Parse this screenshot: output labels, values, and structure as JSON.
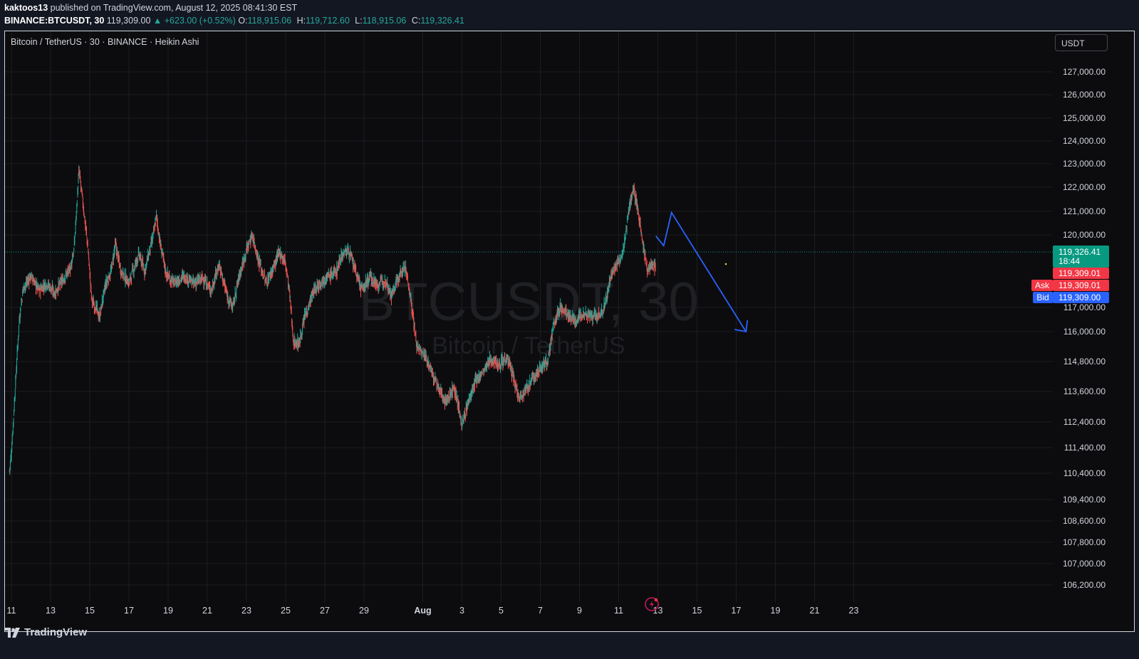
{
  "header": {
    "author": "kaktoos13",
    "published_text": "published on TradingView.com, August 12, 2025 08:41:30 EST"
  },
  "quote": {
    "symbol": "BINANCE:BTCUSDT, 30",
    "price": "119,309.00",
    "change": "▲ +623.00 (+0.52%)",
    "o_label": "O:",
    "o": "118,915.06",
    "h_label": "H:",
    "h": "119,712.60",
    "l_label": "L:",
    "l": "118,915.06",
    "c_label": "C:",
    "c": "119,326.41"
  },
  "legend_text": "Bitcoin / TetherUS · 30 · BINANCE · Heikin Ashi",
  "currency_button": "USDT",
  "watermark": {
    "main": "BTCUSDT, 30",
    "sub": "Bitcoin / TetherUS"
  },
  "footer": {
    "brand": "TradingView"
  },
  "chart_data": {
    "type": "candlestick",
    "title": "Bitcoin / TetherUS · 30 · BINANCE · Heikin Ashi",
    "y_ticks": [
      {
        "label": "127,000.00",
        "value": 127000
      },
      {
        "label": "126,000.00",
        "value": 126000
      },
      {
        "label": "125,000.00",
        "value": 125000
      },
      {
        "label": "124,000.00",
        "value": 124000
      },
      {
        "label": "123,000.00",
        "value": 123000
      },
      {
        "label": "122,000.00",
        "value": 122000
      },
      {
        "label": "121,000.00",
        "value": 121000
      },
      {
        "label": "120,000.00",
        "value": 120000
      },
      {
        "label": "117,000.00",
        "value": 117000
      },
      {
        "label": "116,000.00",
        "value": 116000
      },
      {
        "label": "114,800.00",
        "value": 114800
      },
      {
        "label": "113,600.00",
        "value": 113600
      },
      {
        "label": "112,400.00",
        "value": 112400
      },
      {
        "label": "111,400.00",
        "value": 111400
      },
      {
        "label": "110,400.00",
        "value": 110400
      },
      {
        "label": "109,400.00",
        "value": 109400
      },
      {
        "label": "108,600.00",
        "value": 108600
      },
      {
        "label": "107,800.00",
        "value": 107800
      },
      {
        "label": "107,000.00",
        "value": 107000
      },
      {
        "label": "106,200.00",
        "value": 106200
      }
    ],
    "x_ticks": [
      {
        "label": "11",
        "day": 11
      },
      {
        "label": "13",
        "day": 13
      },
      {
        "label": "15",
        "day": 15
      },
      {
        "label": "17",
        "day": 17
      },
      {
        "label": "19",
        "day": 19
      },
      {
        "label": "21",
        "day": 21
      },
      {
        "label": "23",
        "day": 23
      },
      {
        "label": "25",
        "day": 25
      },
      {
        "label": "27",
        "day": 27
      },
      {
        "label": "29",
        "day": 29
      },
      {
        "label": "Aug",
        "day": 32
      },
      {
        "label": "3",
        "day": 34
      },
      {
        "label": "5",
        "day": 36
      },
      {
        "label": "7",
        "day": 38
      },
      {
        "label": "9",
        "day": 40
      },
      {
        "label": "11",
        "day": 42
      },
      {
        "label": "13",
        "day": 44
      },
      {
        "label": "15",
        "day": 46
      },
      {
        "label": "17",
        "day": 48
      },
      {
        "label": "19",
        "day": 50
      },
      {
        "label": "21",
        "day": 52
      },
      {
        "label": "23",
        "day": 54
      }
    ],
    "price_series": [
      [
        10.9,
        110500
      ],
      [
        11.0,
        111200
      ],
      [
        11.2,
        113800
      ],
      [
        11.4,
        116500
      ],
      [
        11.6,
        117800
      ],
      [
        12.0,
        118300
      ],
      [
        12.4,
        117700
      ],
      [
        12.8,
        118000
      ],
      [
        13.2,
        117600
      ],
      [
        13.6,
        118100
      ],
      [
        14.0,
        118600
      ],
      [
        14.2,
        119400
      ],
      [
        14.45,
        122700
      ],
      [
        14.7,
        121000
      ],
      [
        14.9,
        119500
      ],
      [
        15.1,
        117300
      ],
      [
        15.3,
        117000
      ],
      [
        15.5,
        116600
      ],
      [
        15.8,
        117900
      ],
      [
        16.1,
        118500
      ],
      [
        16.3,
        119600
      ],
      [
        16.6,
        118500
      ],
      [
        17.0,
        118000
      ],
      [
        17.5,
        119200
      ],
      [
        17.8,
        118500
      ],
      [
        18.2,
        119800
      ],
      [
        18.4,
        120800
      ],
      [
        18.6,
        119600
      ],
      [
        18.9,
        118400
      ],
      [
        19.3,
        118000
      ],
      [
        19.8,
        118300
      ],
      [
        20.3,
        118000
      ],
      [
        20.8,
        118200
      ],
      [
        21.2,
        117700
      ],
      [
        21.6,
        118800
      ],
      [
        22.0,
        117500
      ],
      [
        22.3,
        117000
      ],
      [
        22.6,
        118200
      ],
      [
        23.0,
        119400
      ],
      [
        23.3,
        120000
      ],
      [
        23.6,
        119000
      ],
      [
        24.0,
        118000
      ],
      [
        24.4,
        118700
      ],
      [
        24.7,
        119300
      ],
      [
        25.0,
        118800
      ],
      [
        25.2,
        117600
      ],
      [
        25.4,
        115600
      ],
      [
        25.7,
        115500
      ],
      [
        26.0,
        116700
      ],
      [
        26.4,
        117600
      ],
      [
        26.8,
        118100
      ],
      [
        27.2,
        118300
      ],
      [
        27.6,
        118500
      ],
      [
        27.8,
        119100
      ],
      [
        28.2,
        119400
      ],
      [
        28.6,
        118400
      ],
      [
        28.9,
        117700
      ],
      [
        29.3,
        118300
      ],
      [
        29.7,
        117900
      ],
      [
        30.1,
        118200
      ],
      [
        30.4,
        117500
      ],
      [
        30.8,
        118300
      ],
      [
        31.1,
        118700
      ],
      [
        31.4,
        117300
      ],
      [
        31.7,
        115400
      ],
      [
        32.2,
        114900
      ],
      [
        32.8,
        113700
      ],
      [
        33.2,
        113200
      ],
      [
        33.6,
        113800
      ],
      [
        34.0,
        112300
      ],
      [
        34.3,
        113100
      ],
      [
        34.7,
        114000
      ],
      [
        35.1,
        114400
      ],
      [
        35.5,
        114900
      ],
      [
        35.9,
        114700
      ],
      [
        36.3,
        115000
      ],
      [
        36.6,
        114200
      ],
      [
        36.9,
        113400
      ],
      [
        37.3,
        113700
      ],
      [
        37.6,
        114100
      ],
      [
        38.0,
        114500
      ],
      [
        38.4,
        114900
      ],
      [
        38.7,
        116300
      ],
      [
        39.0,
        117000
      ],
      [
        39.4,
        116700
      ],
      [
        39.8,
        116400
      ],
      [
        40.2,
        116800
      ],
      [
        40.6,
        116600
      ],
      [
        41.0,
        116600
      ],
      [
        41.3,
        117100
      ],
      [
        41.6,
        118300
      ],
      [
        41.9,
        118800
      ],
      [
        42.2,
        119100
      ],
      [
        42.5,
        121000
      ],
      [
        42.75,
        122000
      ],
      [
        43.0,
        121000
      ],
      [
        43.2,
        119800
      ],
      [
        43.45,
        118600
      ],
      [
        43.7,
        118800
      ],
      [
        43.9,
        118600
      ]
    ],
    "current_price": "119,326.41",
    "countdown": "18:44",
    "ask_label": "Ask",
    "ask": "119,309.01",
    "mid": "119,309.01",
    "bid_label": "Bid",
    "bid": "119,309.00",
    "forecast_path_points": [
      [
        43.9,
        119950
      ],
      [
        44.3,
        119550
      ],
      [
        44.7,
        120950
      ],
      [
        48.5,
        116000
      ]
    ],
    "colors": {
      "up": "#26a69a",
      "down": "#ef5350",
      "forecast": "#2962ff",
      "price_tag": "#089981",
      "bid": "#2962ff",
      "ask": "#f23645"
    },
    "grid": true
  }
}
